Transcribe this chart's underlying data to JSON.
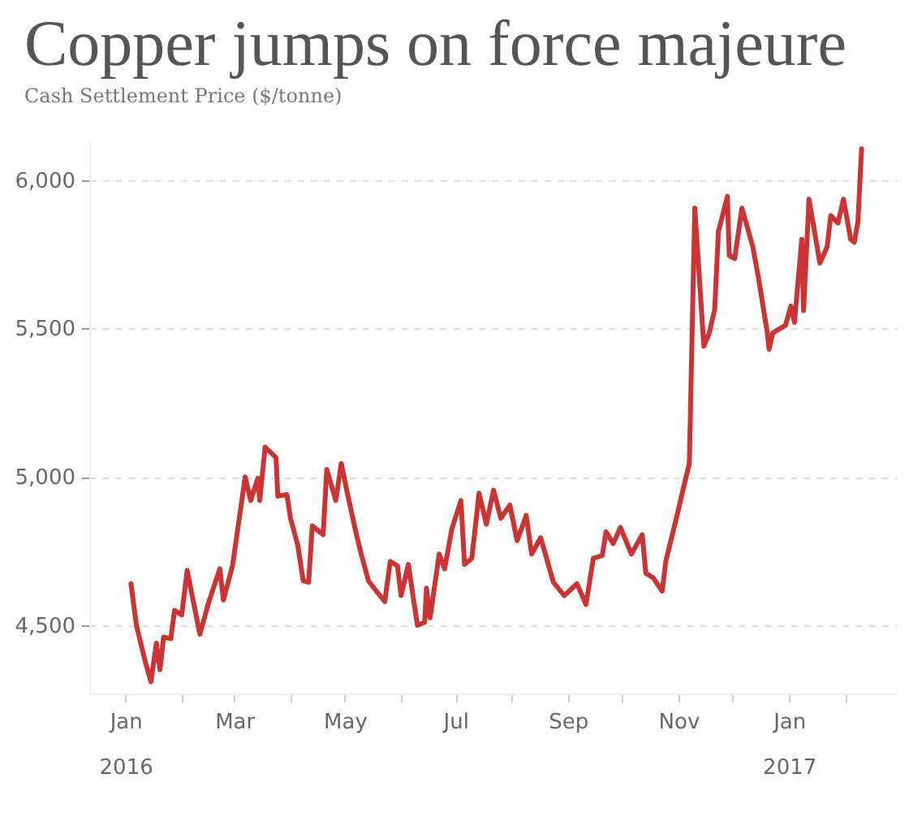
{
  "chart_data": {
    "type": "line",
    "title": "Copper jumps on force majeure",
    "subtitle": "Cash Settlement Price ($/tonne)",
    "x": [
      "2016-01-04",
      "2016-01-07",
      "2016-01-12",
      "2016-01-15",
      "2016-01-18",
      "2016-01-20",
      "2016-01-22",
      "2016-01-26",
      "2016-01-28",
      "2016-02-01",
      "2016-02-04",
      "2016-02-11",
      "2016-02-16",
      "2016-02-22",
      "2016-02-24",
      "2016-02-29",
      "2016-03-07",
      "2016-03-10",
      "2016-03-14",
      "2016-03-15",
      "2016-03-18",
      "2016-03-24",
      "2016-03-25",
      "2016-03-30",
      "2016-04-01",
      "2016-04-05",
      "2016-04-08",
      "2016-04-11",
      "2016-04-13",
      "2016-04-19",
      "2016-04-21",
      "2016-04-26",
      "2016-04-29",
      "2016-05-02",
      "2016-05-07",
      "2016-05-10",
      "2016-05-14",
      "2016-05-19",
      "2016-05-23",
      "2016-05-26",
      "2016-05-30",
      "2016-06-01",
      "2016-06-05",
      "2016-06-10",
      "2016-06-14",
      "2016-06-15",
      "2016-06-17",
      "2016-06-22",
      "2016-06-25",
      "2016-06-29",
      "2016-07-04",
      "2016-07-06",
      "2016-07-10",
      "2016-07-14",
      "2016-07-18",
      "2016-07-22",
      "2016-07-26",
      "2016-07-31",
      "2016-08-04",
      "2016-08-09",
      "2016-08-12",
      "2016-08-17",
      "2016-08-24",
      "2016-08-30",
      "2016-09-06",
      "2016-09-11",
      "2016-09-15",
      "2016-09-20",
      "2016-09-22",
      "2016-09-26",
      "2016-09-30",
      "2016-10-06",
      "2016-10-12",
      "2016-10-14",
      "2016-10-18",
      "2016-10-23",
      "2016-10-25",
      "2016-10-31",
      "2016-11-05",
      "2016-11-07",
      "2016-11-10",
      "2016-11-15",
      "2016-11-18",
      "2016-11-21",
      "2016-11-23",
      "2016-11-28",
      "2016-11-29",
      "2016-12-02",
      "2016-12-06",
      "2016-12-12",
      "2016-12-15",
      "2016-12-20",
      "2016-12-21",
      "2016-12-23",
      "2016-12-30",
      "2017-01-02",
      "2017-01-04",
      "2017-01-08",
      "2017-01-09",
      "2017-01-12",
      "2017-01-18",
      "2017-01-22",
      "2017-01-24",
      "2017-01-28",
      "2017-01-31",
      "2017-02-04",
      "2017-02-06",
      "2017-02-08",
      "2017-02-10"
    ],
    "series": [
      {
        "color": "#cc3333",
        "values": [
          4640,
          4500,
          4375,
          4310,
          4440,
          4350,
          4460,
          4455,
          4550,
          4535,
          4685,
          4470,
          4580,
          4690,
          4585,
          4700,
          5000,
          4920,
          4995,
          4920,
          5100,
          5065,
          4935,
          4940,
          4860,
          4770,
          4650,
          4645,
          4835,
          4805,
          5025,
          4920,
          5045,
          4955,
          4815,
          4740,
          4650,
          4610,
          4580,
          4715,
          4700,
          4600,
          4705,
          4500,
          4510,
          4625,
          4525,
          4740,
          4690,
          4825,
          4920,
          4705,
          4725,
          4945,
          4840,
          4955,
          4860,
          4905,
          4785,
          4870,
          4740,
          4795,
          4645,
          4600,
          4640,
          4570,
          4725,
          4735,
          4815,
          4775,
          4830,
          4740,
          4805,
          4675,
          4660,
          4615,
          4715,
          4865,
          4995,
          5045,
          5905,
          5440,
          5485,
          5565,
          5825,
          5945,
          5745,
          5735,
          5905,
          5775,
          5675,
          5485,
          5430,
          5485,
          5510,
          5575,
          5520,
          5800,
          5560,
          5935,
          5720,
          5775,
          5880,
          5855,
          5935,
          5800,
          5790,
          5860,
          6105
        ]
      }
    ],
    "xlim": [
      "2015-12-12",
      "2017-03-01"
    ],
    "xticks": [
      {
        "value": "2016-01-01",
        "label": "Jan 2016"
      },
      {
        "value": "2016-02-01",
        "label": null
      },
      {
        "value": "2016-03-01",
        "label": "Mar"
      },
      {
        "value": "2016-04-01",
        "label": null
      },
      {
        "value": "2016-05-01",
        "label": "May"
      },
      {
        "value": "2016-06-01",
        "label": null
      },
      {
        "value": "2016-07-01",
        "label": "Jul"
      },
      {
        "value": "2016-08-01",
        "label": null
      },
      {
        "value": "2016-09-01",
        "label": "Sep"
      },
      {
        "value": "2016-10-01",
        "label": null
      },
      {
        "value": "2016-11-01",
        "label": "Nov"
      },
      {
        "value": "2016-12-01",
        "label": null
      },
      {
        "value": "2017-01-01",
        "label": "Jan 2017"
      },
      {
        "value": "2017-02-01",
        "label": null
      }
    ],
    "ylim": [
      4270,
      6130
    ],
    "yticks": [
      {
        "value": 4500,
        "label": "4,500"
      },
      {
        "value": 5000,
        "label": "5,000"
      },
      {
        "value": 5500,
        "label": "5,500"
      },
      {
        "value": 6000,
        "label": "6,000"
      }
    ],
    "grid": "y",
    "line_style": "solid",
    "marker": "none"
  }
}
